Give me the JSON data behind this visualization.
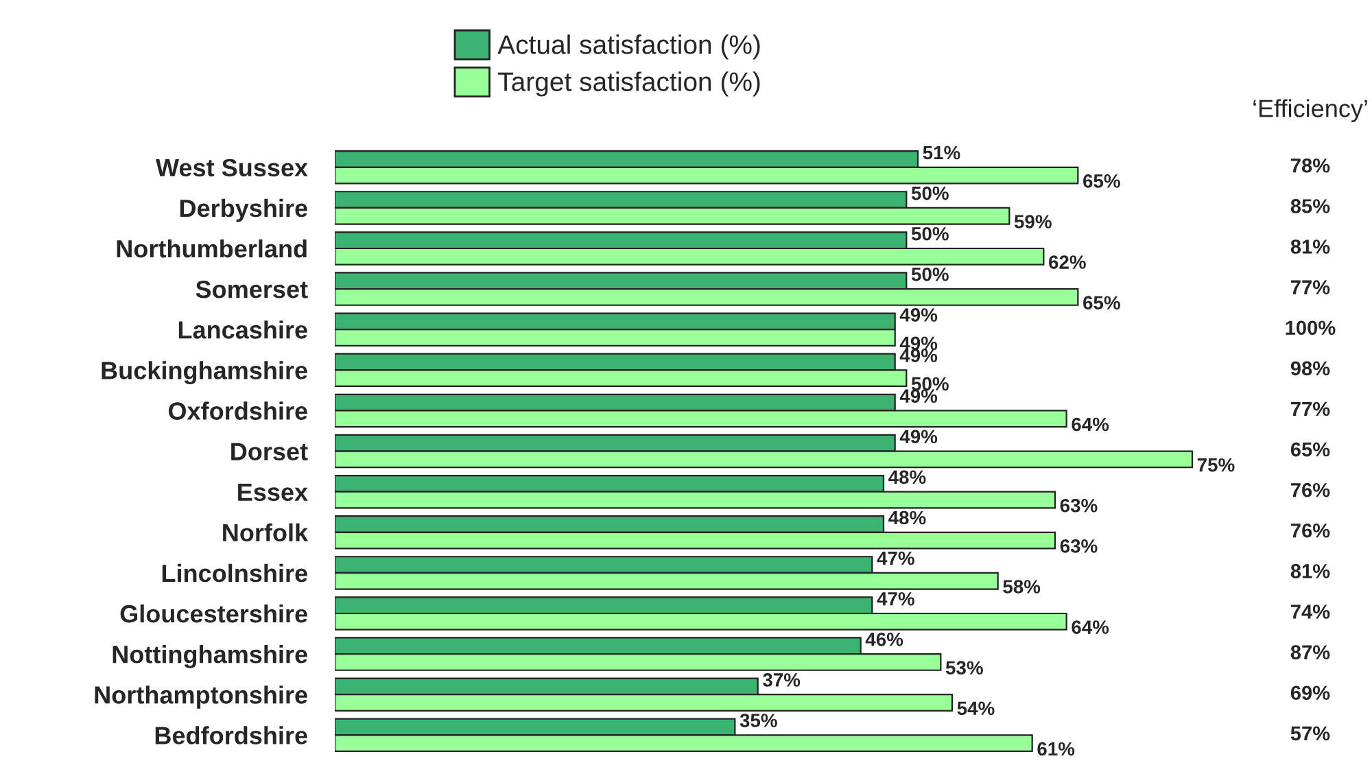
{
  "chart_data": {
    "type": "bar",
    "orientation": "horizontal",
    "legend": "top",
    "grid": false,
    "categories": [
      "West Sussex",
      "Derbyshire",
      "Northumberland",
      "Somerset",
      "Lancashire",
      "Buckinghamshire",
      "Oxfordshire",
      "Dorset",
      "Essex",
      "Norfolk",
      "Lincolnshire",
      "Gloucestershire",
      "Nottinghamshire",
      "Northamptonshire",
      "Bedfordshire"
    ],
    "series": [
      {
        "name": "Actual satisfaction (%)",
        "color": "#3cb371",
        "values": [
          51,
          50,
          50,
          50,
          49,
          49,
          49,
          49,
          48,
          48,
          47,
          47,
          46,
          37,
          35
        ],
        "value_labels": [
          "51%",
          "50%",
          "50%",
          "50%",
          "49%",
          "49%",
          "49%",
          "49%",
          "48%",
          "48%",
          "47%",
          "47%",
          "46%",
          "37%",
          "35%"
        ]
      },
      {
        "name": "Target satisfaction (%)",
        "color": "#99ff99",
        "values": [
          65,
          59,
          62,
          65,
          49,
          50,
          64,
          75,
          63,
          63,
          58,
          64,
          53,
          54,
          61
        ],
        "value_labels": [
          "65%",
          "59%",
          "62%",
          "65%",
          "49%",
          "50%",
          "64%",
          "75%",
          "63%",
          "63%",
          "58%",
          "64%",
          "53%",
          "54%",
          "61%"
        ]
      }
    ],
    "annotations": [
      "‘Efficiency’",
      "78%",
      "85%",
      "81%",
      "77%",
      "100%",
      "98%",
      "77%",
      "65%",
      "76%",
      "76%",
      "81%",
      "74%",
      "87%",
      "69%",
      "57%"
    ]
  }
}
